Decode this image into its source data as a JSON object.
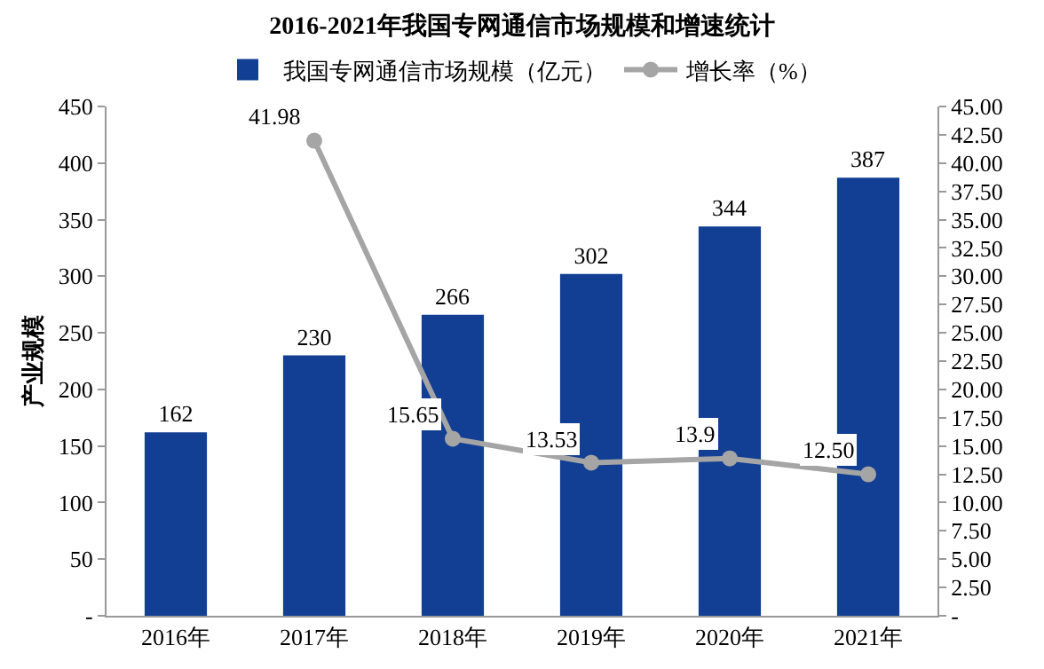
{
  "chart_data": {
    "type": "bar",
    "title": "2016-2021年我国专网通信市场规模和增速统计",
    "ylabel": "产业规模",
    "categories": [
      "2016年",
      "2017年",
      "2018年",
      "2019年",
      "2020年",
      "2021年"
    ],
    "series": [
      {
        "name": "我国专网通信市场规模（亿元）",
        "color": "#123f94",
        "values": [
          162,
          230,
          266,
          302,
          344,
          387
        ],
        "value_labels": [
          "162",
          "230",
          "266",
          "302",
          "344",
          "387"
        ]
      },
      {
        "name": "增长率（%）",
        "type": "line",
        "axis": "y2",
        "color": "#a5a5a5",
        "marker": "circle",
        "line_style": "solid",
        "values": [
          null,
          41.98,
          15.65,
          13.53,
          13.9,
          12.5
        ],
        "value_labels": [
          null,
          "41.98",
          "15.65",
          "13.53",
          "13.9",
          "12.50"
        ]
      }
    ],
    "ylim": [
      0,
      450
    ],
    "yticks": [
      {
        "value": 0,
        "label": "-"
      },
      50,
      100,
      150,
      200,
      250,
      300,
      350,
      400,
      450
    ],
    "y2lim": [
      0,
      45
    ],
    "y2ticks": [
      {
        "value": 0,
        "label": "-"
      },
      {
        "value": 2.5,
        "label": "2.50"
      },
      {
        "value": 5,
        "label": "5.00"
      },
      {
        "value": 7.5,
        "label": "7.50"
      },
      {
        "value": 10,
        "label": "10.00"
      },
      {
        "value": 12.5,
        "label": "12.50"
      },
      {
        "value": 15,
        "label": "15.00"
      },
      {
        "value": 17.5,
        "label": "17.50"
      },
      {
        "value": 20,
        "label": "20.00"
      },
      {
        "value": 22.5,
        "label": "22.50"
      },
      {
        "value": 25,
        "label": "25.00"
      },
      {
        "value": 27.5,
        "label": "27.50"
      },
      {
        "value": 30,
        "label": "30.00"
      },
      {
        "value": 32.5,
        "label": "32.50"
      },
      {
        "value": 35,
        "label": "35.00"
      },
      {
        "value": 37.5,
        "label": "37.50"
      },
      {
        "value": 40,
        "label": "40.00"
      },
      {
        "value": 42.5,
        "label": "42.50"
      },
      {
        "value": 45,
        "label": "45.00"
      }
    ],
    "grid": false,
    "legend": "top"
  }
}
